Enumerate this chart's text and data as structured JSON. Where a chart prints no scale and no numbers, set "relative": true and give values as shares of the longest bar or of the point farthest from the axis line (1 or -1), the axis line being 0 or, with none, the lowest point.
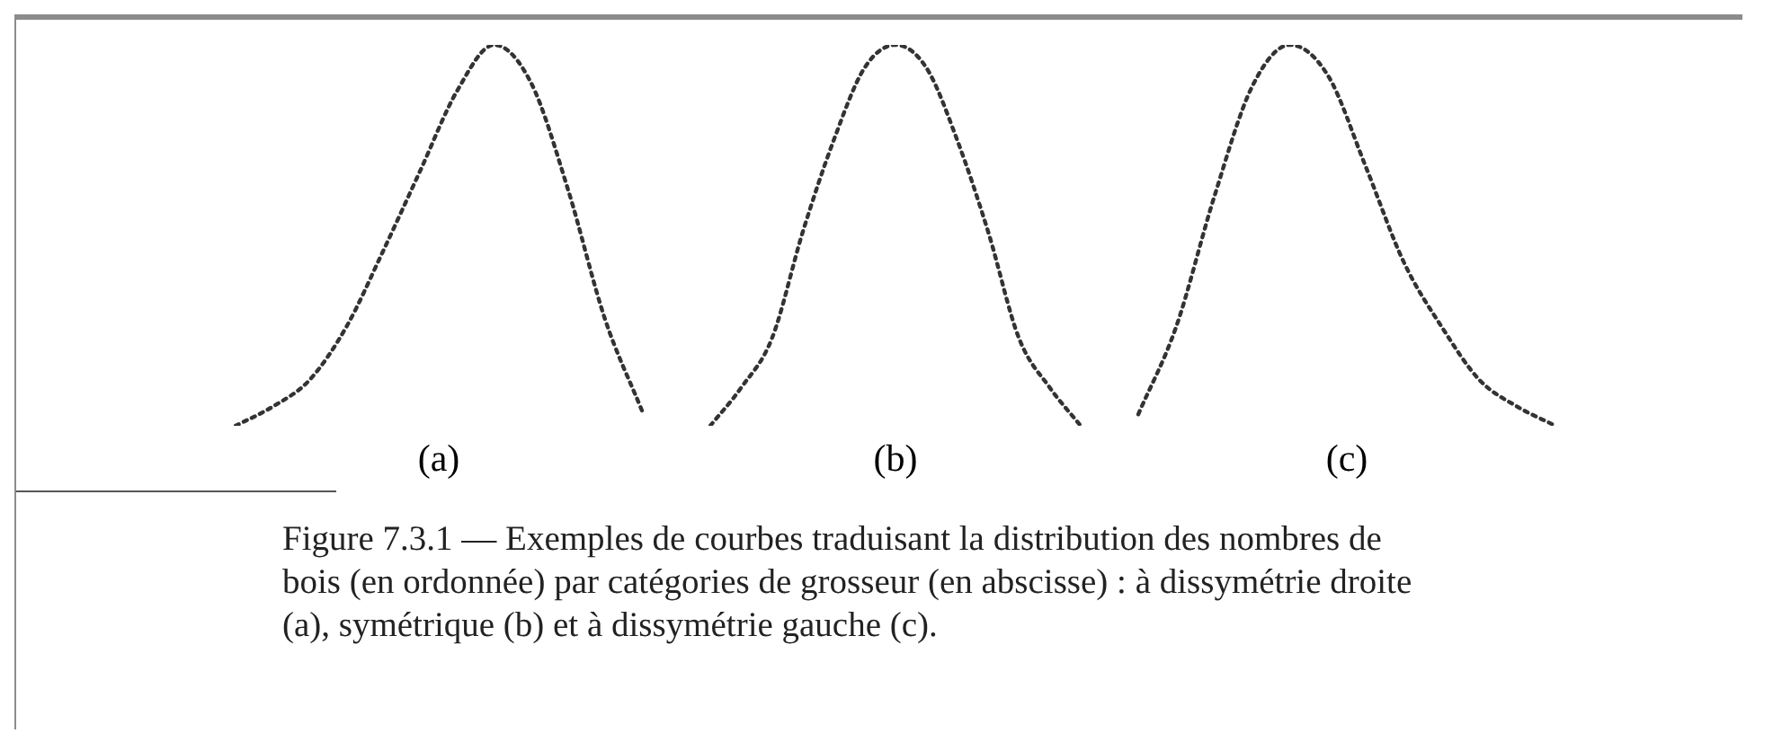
{
  "chart_data": [
    {
      "type": "line",
      "relative": true,
      "categories": [
        null,
        null,
        null,
        null,
        null,
        null,
        null,
        null,
        null,
        null,
        null,
        null
      ],
      "xlabel": "(a)",
      "line_style": "dotted",
      "marker": "none",
      "series": [
        {
          "color": "#333333",
          "values": [
            0,
            0.05,
            0.12,
            0.26,
            0.46,
            0.67,
            0.88,
            1,
            0.9,
            0.62,
            0.28,
            0.04
          ]
        }
      ]
    },
    {
      "type": "line",
      "relative": true,
      "categories": [
        null,
        null,
        null,
        null,
        null,
        null,
        null,
        null,
        null,
        null,
        null,
        null,
        null
      ],
      "xlabel": "(b)",
      "line_style": "dotted",
      "marker": "none",
      "series": [
        {
          "color": "#333333",
          "values": [
            0,
            0.1,
            0.23,
            0.51,
            0.75,
            0.94,
            1,
            0.94,
            0.75,
            0.51,
            0.23,
            0.1,
            0
          ]
        }
      ]
    },
    {
      "type": "line",
      "relative": true,
      "categories": [
        null,
        null,
        null,
        null,
        null,
        null,
        null,
        null,
        null,
        null,
        null,
        null
      ],
      "xlabel": "(c)",
      "line_style": "dotted",
      "marker": "none",
      "series": [
        {
          "color": "#333333",
          "values": [
            0.03,
            0.26,
            0.6,
            0.89,
            1,
            0.92,
            0.68,
            0.43,
            0.26,
            0.12,
            0.05,
            0
          ]
        }
      ],
      "annotations": [
        "Figure 7.3.1 — Exemples de courbes traduisant la distribution des nombres de bois (en ordonnée) par catégories de grosseur (en abscisse) : à dissymétrie droite (a), symétrique (b) et à dissymétrie gauche (c)."
      ]
    }
  ]
}
